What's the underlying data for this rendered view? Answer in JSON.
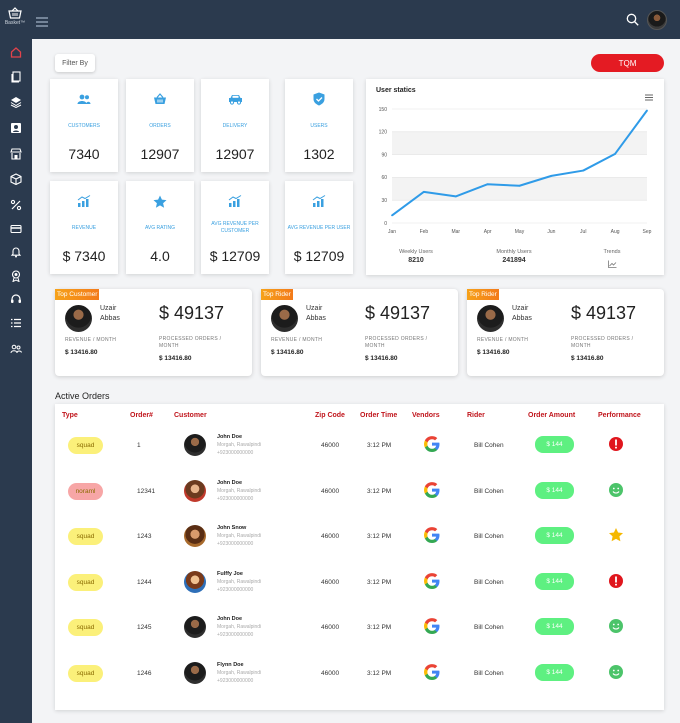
{
  "app": {
    "brand": "Basket™"
  },
  "header": {
    "filter_label": "Filter By",
    "tqm_label": "TQM"
  },
  "sidebar": {
    "icons": [
      "home-icon",
      "copy-icon",
      "layers-icon",
      "user-card-icon",
      "store-icon",
      "box-icon",
      "percent-icon",
      "credit-card-icon",
      "bell-icon",
      "badge-icon",
      "headset-icon",
      "list-icon",
      "users-icon"
    ]
  },
  "stats": [
    {
      "label": "CUSTOMERS",
      "value": "7340",
      "icon": "users-icon"
    },
    {
      "label": "ORDERS",
      "value": "12907",
      "icon": "basket-icon"
    },
    {
      "label": "DELIVERY",
      "value": "12907",
      "icon": "car-icon"
    },
    {
      "label": "USERS",
      "value": "1302",
      "icon": "shield-check-icon"
    },
    {
      "label": "REVENUE",
      "value": "$ 7340",
      "icon": "bar-chart-icon"
    },
    {
      "label": "AVG RATING",
      "value": "4.0",
      "icon": "star-icon"
    },
    {
      "label": "AVG REVENUE PER CUSTOMER",
      "value": "$ 12709",
      "icon": "bar-chart-icon"
    },
    {
      "label": "AVG REVENUE PER USER",
      "value": "$ 12709",
      "icon": "bar-chart-icon"
    }
  ],
  "user_statics": {
    "title": "User statics",
    "weekly_label": "Weekly Users",
    "weekly_value": "8210",
    "monthly_label": "Monthly Users",
    "monthly_value": "241894",
    "trends_label": "Trends"
  },
  "chart_data": {
    "type": "line",
    "title": "User statics",
    "categories": [
      "Jan",
      "Feb",
      "Mar",
      "Apr",
      "May",
      "Jun",
      "Jul",
      "Aug",
      "Sep"
    ],
    "series": [
      {
        "values": [
          10,
          41,
          35,
          51,
          49,
          62,
          69,
          91,
          148
        ]
      }
    ],
    "ylim": [
      0,
      150
    ],
    "yticks": [
      0,
      30,
      60,
      90,
      120,
      150
    ],
    "grid": true,
    "color": "#2f9be8"
  },
  "top_cards": [
    {
      "badge": "Top Customer",
      "first": "Uzair",
      "last": "Abbas",
      "amount": "$ 49137",
      "rev_label": "REVENUE / MONTH",
      "rev_value": "$ 13416.80",
      "proc_label_1": "PROCESSED ORDERS /",
      "proc_label_2": "MONTH",
      "proc_value": "$ 13416.80"
    },
    {
      "badge": "Top Rider",
      "first": "Uzair",
      "last": "Abbas",
      "amount": "$ 49137",
      "rev_label": "REVENUE / MONTH",
      "rev_value": "$ 13416.80",
      "proc_label_1": "PROCESSED ORDERS /",
      "proc_label_2": "MONTH",
      "proc_value": "$ 13416.80"
    },
    {
      "badge": "Top Rider",
      "first": "Uzair",
      "last": "Abbas",
      "amount": "$ 49137",
      "rev_label": "REVENUE / MONTH",
      "rev_value": "$ 13416.80",
      "proc_label_1": "PROCESSED ORDERS /",
      "proc_label_2": "MONTH",
      "proc_value": "$ 13416.80"
    }
  ],
  "orders": {
    "title": "Active Orders",
    "headers": [
      "Type",
      "Order#",
      "Customer",
      "Zip Code",
      "Order Time",
      "Vendors",
      "Rider",
      "Order Amount",
      "Performance"
    ],
    "rows": [
      {
        "type": "squad",
        "type_color": "#fbf07a",
        "order": "1",
        "name": "John Doe",
        "addr": "Morgah, Rawalpindi",
        "phone": "+923000000000",
        "zip": "46000",
        "time": "3:12 PM",
        "rider": "Bill Cohen",
        "amount": "$ 144",
        "perf": "alert-icon"
      },
      {
        "type": "noraml",
        "type_color": "#f7a6a6",
        "order": "12341",
        "name": "John Doe",
        "addr": "Morgah, Rawalpindi",
        "phone": "+923000000000",
        "zip": "46000",
        "time": "3:12 PM",
        "rider": "Bill Cohen",
        "amount": "$ 144",
        "perf": "smile-icon"
      },
      {
        "type": "squad",
        "type_color": "#fbf07a",
        "order": "1243",
        "name": "John Snow",
        "addr": "Morgah, Rawalpindi",
        "phone": "+923000000000",
        "zip": "46000",
        "time": "3:12 PM",
        "rider": "Bill Cohen",
        "amount": "$ 144",
        "perf": "star-icon"
      },
      {
        "type": "squad",
        "type_color": "#fbf07a",
        "order": "1244",
        "name": "Fulffy Joe",
        "addr": "Morgah, Rawalpindi",
        "phone": "+923000000000",
        "zip": "46000",
        "time": "3:12 PM",
        "rider": "Bill Cohen",
        "amount": "$ 144",
        "perf": "alert-icon"
      },
      {
        "type": "squad",
        "type_color": "#fbf07a",
        "order": "1245",
        "name": "John Doe",
        "addr": "Morgah, Rawalpindi",
        "phone": "+923000000000",
        "zip": "46000",
        "time": "3:12 PM",
        "rider": "Bill Cohen",
        "amount": "$ 144",
        "perf": "smile-icon"
      },
      {
        "type": "squad",
        "type_color": "#fbf07a",
        "order": "1246",
        "name": "Flynn Doe",
        "addr": "Morgah, Rawalpindi",
        "phone": "+923000000000",
        "zip": "46000",
        "time": "3:12 PM",
        "rider": "Bill Cohen",
        "amount": "$ 144",
        "perf": "smile-icon"
      }
    ]
  }
}
